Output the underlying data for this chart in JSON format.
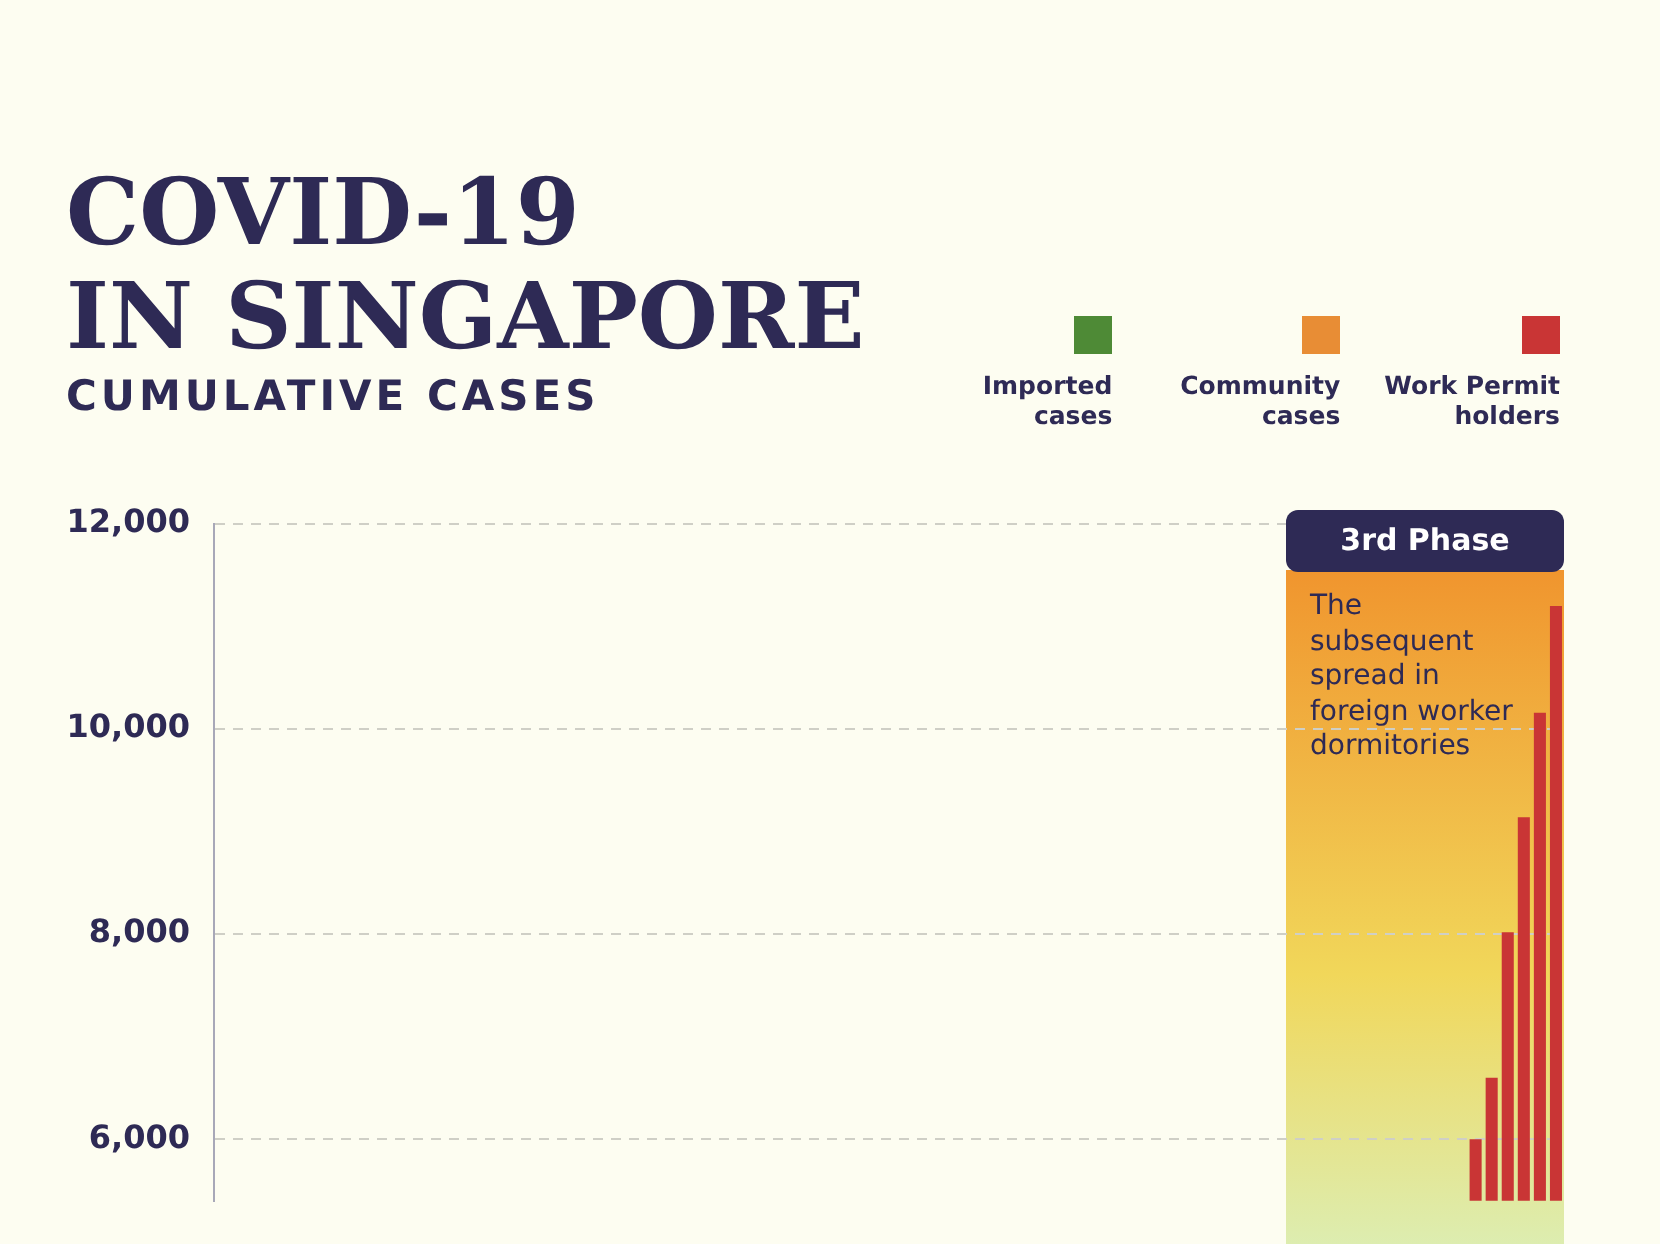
{
  "chart_data": {
    "type": "bar",
    "title": "COVID-19\nIN SINGAPORE",
    "subtitle": "CUMULATIVE CASES",
    "stacked": true,
    "legend": "top right",
    "grid": "y",
    "categories": [
      null,
      null,
      null,
      null,
      null,
      null,
      null,
      null,
      null,
      null,
      null,
      null,
      null,
      null,
      null,
      null,
      null,
      null,
      null,
      null,
      null,
      null,
      null,
      null,
      null,
      null,
      null,
      null,
      null,
      null,
      null,
      null,
      null,
      null,
      null,
      null,
      null,
      null,
      null,
      null,
      null,
      null,
      null,
      null,
      null,
      null,
      null,
      null,
      null,
      null,
      null,
      null,
      null,
      null,
      null,
      null,
      null,
      null,
      null,
      null,
      null,
      null,
      null,
      null,
      null,
      null,
      null,
      null,
      null,
      null,
      null,
      null,
      null,
      null,
      null,
      null,
      null,
      null,
      null,
      null,
      null,
      null,
      null,
      null
    ],
    "series": [
      {
        "name": "Imported cases",
        "color": "#4e8a36",
        "values": [
          null,
          null,
          null,
          null,
          null,
          null,
          null,
          null,
          null,
          null,
          null,
          null,
          null,
          null,
          null,
          null,
          null,
          null,
          null,
          null,
          null,
          null,
          null,
          null,
          null,
          null,
          null,
          null,
          null,
          null,
          null,
          null,
          null,
          null,
          null,
          null,
          null,
          null,
          null,
          null,
          null,
          null,
          null,
          null,
          null,
          null,
          null,
          null,
          null,
          null,
          null,
          null,
          null,
          null,
          null,
          null,
          null,
          null,
          null,
          null,
          null,
          null,
          null,
          null,
          null,
          null,
          null,
          null,
          null,
          null,
          null,
          null,
          null,
          null,
          null,
          null,
          null,
          null,
          null,
          null,
          null,
          null,
          null,
          null
        ]
      },
      {
        "name": "Community cases",
        "color": "#e88d35",
        "values": [
          null,
          null,
          null,
          null,
          null,
          null,
          null,
          null,
          null,
          null,
          null,
          null,
          null,
          null,
          null,
          null,
          null,
          null,
          null,
          null,
          null,
          null,
          null,
          null,
          null,
          null,
          null,
          null,
          null,
          null,
          null,
          null,
          null,
          null,
          null,
          null,
          null,
          null,
          null,
          null,
          null,
          null,
          null,
          null,
          null,
          null,
          null,
          null,
          null,
          null,
          null,
          null,
          null,
          null,
          null,
          null,
          null,
          null,
          null,
          null,
          null,
          null,
          null,
          null,
          null,
          null,
          null,
          null,
          null,
          null,
          null,
          null,
          null,
          null,
          null,
          null,
          null,
          null,
          null,
          null,
          null,
          null,
          null,
          null
        ]
      },
      {
        "name": "Work Permit\nholders",
        "color": "#c93535",
        "values": [
          null,
          null,
          null,
          null,
          null,
          null,
          null,
          null,
          null,
          null,
          null,
          null,
          null,
          null,
          null,
          null,
          null,
          null,
          null,
          null,
          null,
          null,
          null,
          null,
          null,
          null,
          null,
          null,
          null,
          null,
          null,
          null,
          null,
          null,
          null,
          null,
          null,
          null,
          null,
          null,
          null,
          null,
          null,
          null,
          null,
          null,
          null,
          null,
          null,
          null,
          null,
          null,
          null,
          null,
          null,
          null,
          null,
          null,
          null,
          null,
          null,
          null,
          null,
          null,
          null,
          null,
          null,
          null,
          null,
          null,
          null,
          null,
          null,
          null,
          null,
          null,
          null,
          null,
          6000,
          6600,
          8020,
          9140,
          10160,
          11200
        ]
      }
    ],
    "ylim": [
      5400,
      12000
    ],
    "yticks": [
      {
        "value": 6000,
        "label": "6,000"
      },
      {
        "value": 8000,
        "label": "8,000"
      },
      {
        "value": 10000,
        "label": "10,000"
      },
      {
        "value": 12000,
        "label": "12,000"
      }
    ],
    "annotations": [
      "3rd Phase",
      "The\nsubsequent\nspread in\nforeign worker\ndormitories"
    ]
  }
}
